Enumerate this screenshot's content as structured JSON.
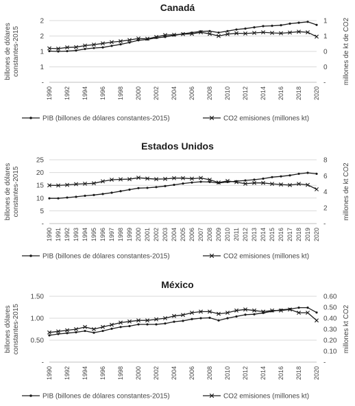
{
  "chart_data": [
    {
      "type": "line",
      "title": "Canadá",
      "ylabel_left": "billones de dólares constantes-2015",
      "ylabel_right": "millones de kt de CO2",
      "left_ticks": [
        "-",
        "1",
        "1",
        "2",
        "2"
      ],
      "left_ylim": [
        0,
        2
      ],
      "right_ticks": [
        "-",
        "0",
        "0",
        "1",
        "1"
      ],
      "right_ylim": [
        0,
        2
      ],
      "x": [
        1990,
        1991,
        1992,
        1993,
        1994,
        1995,
        1996,
        1997,
        1998,
        1999,
        2000,
        2001,
        2002,
        2003,
        2004,
        2005,
        2006,
        2007,
        2008,
        2009,
        2010,
        2011,
        2012,
        2013,
        2014,
        2015,
        2016,
        2017,
        2018,
        2019,
        2020
      ],
      "x_tick_labels": [
        "1990",
        "1992",
        "1994",
        "1996",
        "1998",
        "2000",
        "2002",
        "2004",
        "2006",
        "2008",
        "2010",
        "2012",
        "2014",
        "2016",
        "2018",
        "2020"
      ],
      "x_tick_step": 2,
      "series": [
        {
          "name": "PIB (billones de dólares constantes-2015)",
          "axis": "left",
          "marker": "dot",
          "values": [
            1.01,
            1.0,
            1.01,
            1.03,
            1.08,
            1.11,
            1.13,
            1.18,
            1.23,
            1.29,
            1.36,
            1.39,
            1.44,
            1.47,
            1.52,
            1.57,
            1.61,
            1.65,
            1.66,
            1.61,
            1.66,
            1.71,
            1.74,
            1.78,
            1.82,
            1.83,
            1.85,
            1.9,
            1.93,
            1.96,
            1.86
          ]
        },
        {
          "name": "CO2 emisiones (millones kt)",
          "axis": "right",
          "marker": "x",
          "values": [
            1.1,
            1.09,
            1.13,
            1.14,
            1.19,
            1.22,
            1.26,
            1.3,
            1.33,
            1.37,
            1.42,
            1.41,
            1.47,
            1.53,
            1.54,
            1.56,
            1.57,
            1.62,
            1.57,
            1.5,
            1.56,
            1.59,
            1.58,
            1.6,
            1.62,
            1.6,
            1.59,
            1.61,
            1.64,
            1.62,
            1.48
          ]
        }
      ]
    },
    {
      "type": "line",
      "title": "Estados Unidos",
      "ylabel_left": "billones de dólares constantes-2015",
      "ylabel_right": "millones de kt CO2",
      "left_ticks": [
        "-",
        "5",
        "10",
        "15",
        "20",
        "25"
      ],
      "left_ylim": [
        0,
        25
      ],
      "right_ticks": [
        "-",
        "2",
        "4",
        "6",
        "8"
      ],
      "right_ylim": [
        0,
        8
      ],
      "x": [
        1990,
        1991,
        1992,
        1993,
        1994,
        1995,
        1996,
        1997,
        1998,
        1999,
        2000,
        2001,
        2002,
        2003,
        2004,
        2005,
        2006,
        2007,
        2008,
        2009,
        2010,
        2011,
        2012,
        2013,
        2014,
        2015,
        2016,
        2017,
        2018,
        2019,
        2020
      ],
      "x_tick_labels": [
        "1990",
        "1991",
        "1992",
        "1993",
        "1994",
        "1995",
        "1996",
        "1997",
        "1998",
        "1999",
        "2000",
        "2001",
        "2002",
        "2003",
        "2004",
        "2005",
        "2006",
        "2007",
        "2008",
        "2009",
        "2010",
        "2011",
        "2012",
        "2013",
        "2014",
        "2015",
        "2016",
        "2017",
        "2018",
        "2019",
        "2020"
      ],
      "x_tick_step": 1,
      "series": [
        {
          "name": "PIB (billones de dólares constantes-2015)",
          "axis": "left",
          "marker": "dot",
          "values": [
            9.9,
            9.9,
            10.2,
            10.5,
            10.9,
            11.2,
            11.6,
            12.1,
            12.7,
            13.3,
            13.9,
            14.0,
            14.3,
            14.7,
            15.2,
            15.7,
            16.1,
            16.4,
            16.3,
            15.9,
            16.3,
            16.6,
            16.9,
            17.2,
            17.6,
            18.2,
            18.5,
            18.9,
            19.5,
            19.9,
            19.5
          ]
        },
        {
          "name": "CO2 emisiones (millones kt)",
          "axis": "right",
          "marker": "x",
          "values": [
            4.8,
            4.78,
            4.85,
            4.95,
            5.0,
            5.05,
            5.3,
            5.5,
            5.55,
            5.57,
            5.75,
            5.65,
            5.57,
            5.6,
            5.7,
            5.7,
            5.63,
            5.72,
            5.5,
            5.15,
            5.35,
            5.2,
            5.0,
            5.1,
            5.1,
            4.98,
            4.9,
            4.83,
            4.98,
            4.85,
            4.3
          ]
        }
      ]
    },
    {
      "type": "line",
      "title": "México",
      "ylabel_left": "billones dólares constantes-2015",
      "ylabel_right": "millones kt CO2",
      "left_ticks": [
        "-",
        "0.50",
        "1.00",
        "1.50"
      ],
      "left_ylim": [
        0,
        1.5
      ],
      "right_ticks": [
        "-",
        "0.10",
        "0.20",
        "0.30",
        "0.40",
        "0.50",
        "0.60"
      ],
      "right_ylim": [
        0,
        0.6
      ],
      "x": [
        1990,
        1991,
        1992,
        1993,
        1994,
        1995,
        1996,
        1997,
        1998,
        1999,
        2000,
        2001,
        2002,
        2003,
        2004,
        2005,
        2006,
        2007,
        2008,
        2009,
        2010,
        2011,
        2012,
        2013,
        2014,
        2015,
        2016,
        2017,
        2018,
        2019,
        2020
      ],
      "x_tick_labels": [
        "1990",
        "1992",
        "1994",
        "1996",
        "1998",
        "2000",
        "2002",
        "2004",
        "2006",
        "2008",
        "2010",
        "2012",
        "2014",
        "2016",
        "2018",
        "2020"
      ],
      "x_tick_step": 2,
      "series": [
        {
          "name": "PIB (billones de dólares constantes-2015)",
          "axis": "left",
          "marker": "dot",
          "values": [
            0.61,
            0.64,
            0.66,
            0.68,
            0.71,
            0.67,
            0.71,
            0.76,
            0.8,
            0.82,
            0.86,
            0.86,
            0.86,
            0.88,
            0.92,
            0.94,
            0.98,
            1.0,
            1.01,
            0.95,
            1.0,
            1.04,
            1.08,
            1.09,
            1.12,
            1.16,
            1.19,
            1.21,
            1.24,
            1.24,
            1.13
          ]
        },
        {
          "name": "CO2 emisiones (millones kt)",
          "axis": "right",
          "marker": "x",
          "values": [
            0.27,
            0.28,
            0.29,
            0.3,
            0.32,
            0.3,
            0.32,
            0.34,
            0.36,
            0.37,
            0.38,
            0.38,
            0.39,
            0.4,
            0.42,
            0.43,
            0.45,
            0.46,
            0.46,
            0.44,
            0.45,
            0.47,
            0.48,
            0.47,
            0.46,
            0.47,
            0.47,
            0.48,
            0.45,
            0.45,
            0.38
          ]
        }
      ]
    }
  ]
}
